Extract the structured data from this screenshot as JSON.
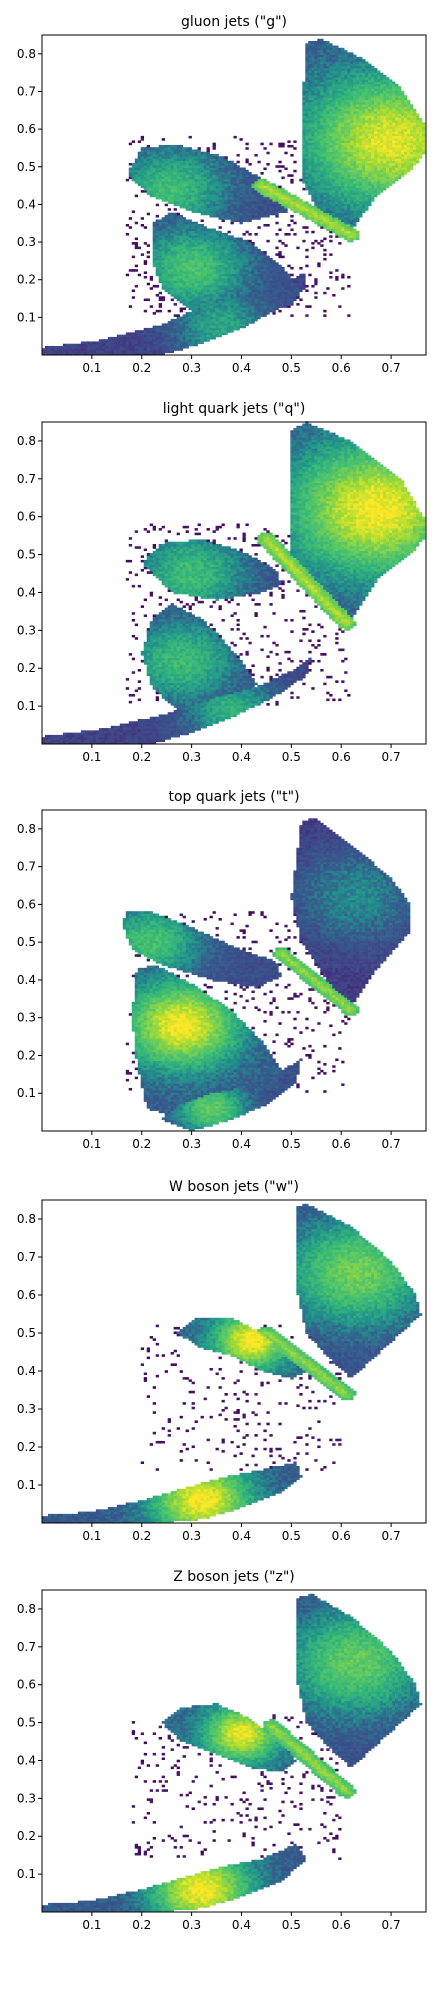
{
  "chart_data": [
    {
      "type": "heatmap",
      "title": "gluon jets (\"g\")",
      "xlabel": "",
      "ylabel": "",
      "xlim": [
        0.0,
        0.77
      ],
      "ylim": [
        0.0,
        0.85
      ],
      "x_ticks": [
        "0.1",
        "0.2",
        "0.3",
        "0.4",
        "0.5",
        "0.6",
        "0.7"
      ],
      "y_ticks": [
        "0.1",
        "0.2",
        "0.3",
        "0.4",
        "0.5",
        "0.6",
        "0.7",
        "0.8"
      ],
      "grid": false,
      "colormap": "viridis"
    },
    {
      "type": "heatmap",
      "title": "light quark jets (\"q\")",
      "xlabel": "",
      "ylabel": "",
      "xlim": [
        0.0,
        0.77
      ],
      "ylim": [
        0.0,
        0.85
      ],
      "x_ticks": [
        "0.1",
        "0.2",
        "0.3",
        "0.4",
        "0.5",
        "0.6",
        "0.7"
      ],
      "y_ticks": [
        "0.1",
        "0.2",
        "0.3",
        "0.4",
        "0.5",
        "0.6",
        "0.7",
        "0.8"
      ],
      "grid": false,
      "colormap": "viridis"
    },
    {
      "type": "heatmap",
      "title": "top quark jets (\"t\")",
      "xlabel": "",
      "ylabel": "",
      "xlim": [
        0.0,
        0.77
      ],
      "ylim": [
        0.0,
        0.85
      ],
      "x_ticks": [
        "0.1",
        "0.2",
        "0.3",
        "0.4",
        "0.5",
        "0.6",
        "0.7"
      ],
      "y_ticks": [
        "0.1",
        "0.2",
        "0.3",
        "0.4",
        "0.5",
        "0.6",
        "0.7",
        "0.8"
      ],
      "grid": false,
      "colormap": "viridis"
    },
    {
      "type": "heatmap",
      "title": "W boson jets (\"w\")",
      "xlabel": "",
      "ylabel": "",
      "xlim": [
        0.0,
        0.77
      ],
      "ylim": [
        0.0,
        0.85
      ],
      "x_ticks": [
        "0.1",
        "0.2",
        "0.3",
        "0.4",
        "0.5",
        "0.6",
        "0.7"
      ],
      "y_ticks": [
        "0.1",
        "0.2",
        "0.3",
        "0.4",
        "0.5",
        "0.6",
        "0.7",
        "0.8"
      ],
      "grid": false,
      "colormap": "viridis"
    },
    {
      "type": "heatmap",
      "title": "Z boson jets (\"z\")",
      "xlabel": "",
      "ylabel": "",
      "xlim": [
        0.0,
        0.77
      ],
      "ylim": [
        0.0,
        0.85
      ],
      "x_ticks": [
        "0.1",
        "0.2",
        "0.3",
        "0.4",
        "0.5",
        "0.6",
        "0.7"
      ],
      "y_ticks": [
        "0.1",
        "0.2",
        "0.3",
        "0.4",
        "0.5",
        "0.6",
        "0.7",
        "0.8"
      ],
      "grid": false,
      "colormap": "viridis"
    }
  ],
  "colors": {
    "viridis_low": "#440154",
    "viridis_midlow": "#3b528b",
    "viridis_mid": "#21918c",
    "viridis_midhigh": "#5ec962",
    "viridis_high": "#fde725",
    "axis": "#000000",
    "background": "#ffffff"
  }
}
